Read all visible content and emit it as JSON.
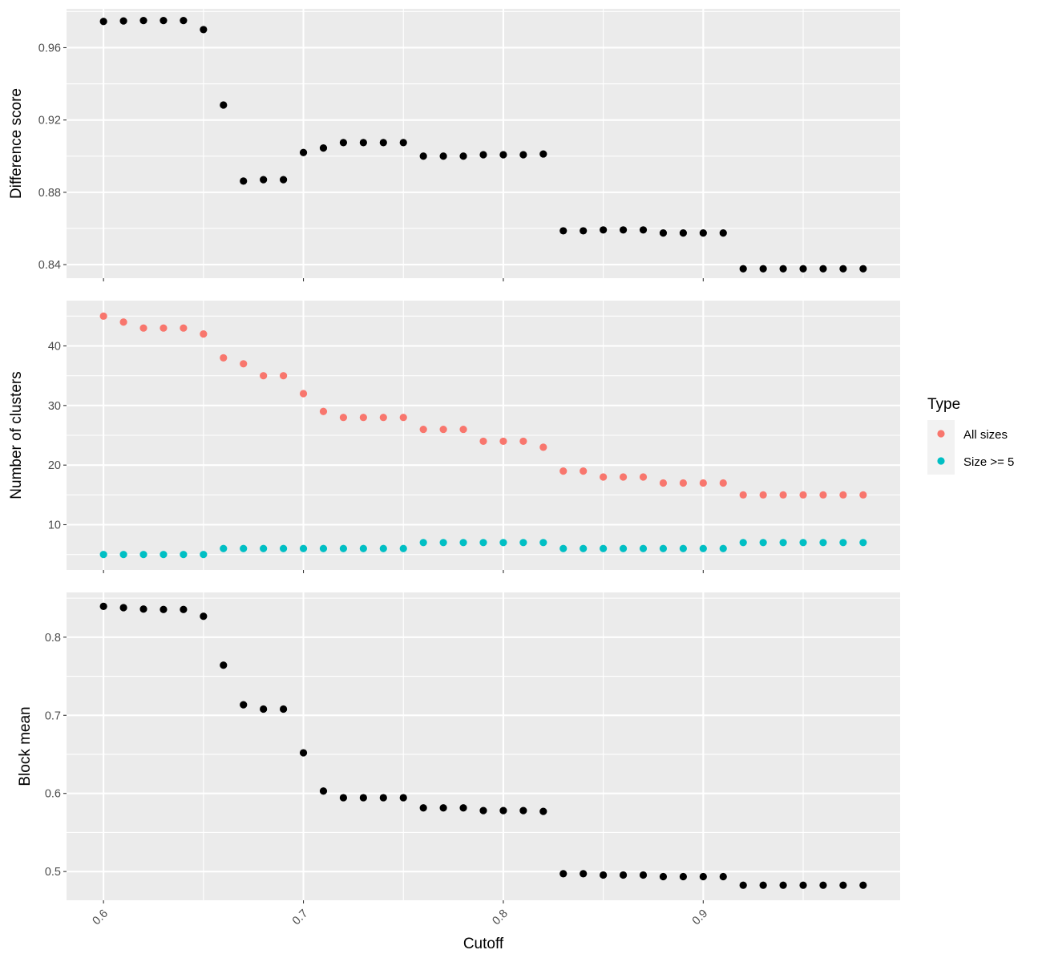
{
  "chart_data": {
    "type": "scatter",
    "x_label": "Cutoff",
    "x_ticks": [
      0.6,
      0.7,
      0.8,
      0.9
    ],
    "x_tick_labels": [
      "0.6",
      "0.7",
      "0.8",
      "0.9"
    ],
    "x_range": [
      0.5815,
      0.9985
    ],
    "x": [
      0.6,
      0.61,
      0.62,
      0.63,
      0.64,
      0.65,
      0.66,
      0.67,
      0.68,
      0.69,
      0.7,
      0.71,
      0.72,
      0.73,
      0.74,
      0.75,
      0.76,
      0.77,
      0.78,
      0.79,
      0.8,
      0.81,
      0.82,
      0.83,
      0.84,
      0.85,
      0.86,
      0.87,
      0.88,
      0.89,
      0.9,
      0.91,
      0.92,
      0.93,
      0.94,
      0.95,
      0.96,
      0.97,
      0.98
    ],
    "panels": [
      {
        "ylabel": "Difference score",
        "ylim": [
          0.8325,
          0.9815
        ],
        "y_ticks": [
          0.84,
          0.88,
          0.92,
          0.96
        ],
        "y_tick_labels": [
          "0.84",
          "0.88",
          "0.92",
          "0.96"
        ],
        "series": [
          {
            "color": "#000000",
            "values": [
              0.9745,
              0.9748,
              0.975,
              0.975,
              0.975,
              0.97,
              0.9283,
              0.8862,
              0.887,
              0.887,
              0.902,
              0.9045,
              0.9075,
              0.9075,
              0.9075,
              0.9075,
              0.9,
              0.9,
              0.9,
              0.9008,
              0.9008,
              0.9008,
              0.9012,
              0.8587,
              0.8587,
              0.8592,
              0.8592,
              0.8592,
              0.8575,
              0.8575,
              0.8575,
              0.8575,
              0.8377,
              0.8377,
              0.8377,
              0.8377,
              0.8377,
              0.8377,
              0.8377
            ]
          }
        ]
      },
      {
        "ylabel": "Number of clusters",
        "ylim": [
          2.4,
          47.6
        ],
        "y_ticks": [
          10,
          20,
          30,
          40
        ],
        "y_tick_labels": [
          "10",
          "20",
          "30",
          "40"
        ],
        "series": [
          {
            "name": "All sizes",
            "color": "#F8766D",
            "values": [
              45,
              44,
              43,
              43,
              43,
              42,
              38,
              37,
              35,
              35,
              32,
              29,
              28,
              28,
              28,
              28,
              26,
              26,
              26,
              24,
              24,
              24,
              23,
              19,
              19,
              18,
              18,
              18,
              17,
              17,
              17,
              17,
              15,
              15,
              15,
              15,
              15,
              15,
              15
            ]
          },
          {
            "name": "Size >= 5",
            "color": "#00BFC4",
            "values": [
              5,
              5,
              5,
              5,
              5,
              5,
              6,
              6,
              6,
              6,
              6,
              6,
              6,
              6,
              6,
              6,
              7,
              7,
              7,
              7,
              7,
              7,
              7,
              6,
              6,
              6,
              6,
              6,
              6,
              6,
              6,
              6,
              7,
              7,
              7,
              7,
              7,
              7,
              7
            ]
          }
        ]
      },
      {
        "ylabel": "Block mean",
        "ylim": [
          0.4632,
          0.8573
        ],
        "y_ticks": [
          0.5,
          0.6,
          0.7,
          0.8
        ],
        "y_tick_labels": [
          "0.5",
          "0.6",
          "0.7",
          "0.8"
        ],
        "series": [
          {
            "color": "#000000",
            "values": [
              0.8395,
              0.8378,
              0.836,
              0.8355,
              0.8355,
              0.8268,
              0.7642,
              0.7135,
              0.708,
              0.708,
              0.652,
              0.603,
              0.5945,
              0.5945,
              0.5945,
              0.5945,
              0.5815,
              0.5815,
              0.5815,
              0.578,
              0.578,
              0.578,
              0.577,
              0.4972,
              0.4972,
              0.4955,
              0.4955,
              0.4955,
              0.4935,
              0.4935,
              0.4935,
              0.4935,
              0.4825,
              0.4825,
              0.4825,
              0.4825,
              0.4825,
              0.4825,
              0.4825
            ]
          }
        ]
      }
    ],
    "legend": {
      "title": "Type",
      "placement": "right",
      "entries": [
        {
          "label": "All sizes",
          "color": "#F8766D"
        },
        {
          "label": "Size >= 5",
          "color": "#00BFC4"
        }
      ]
    },
    "grid": true,
    "background": "#EBEBEB"
  }
}
